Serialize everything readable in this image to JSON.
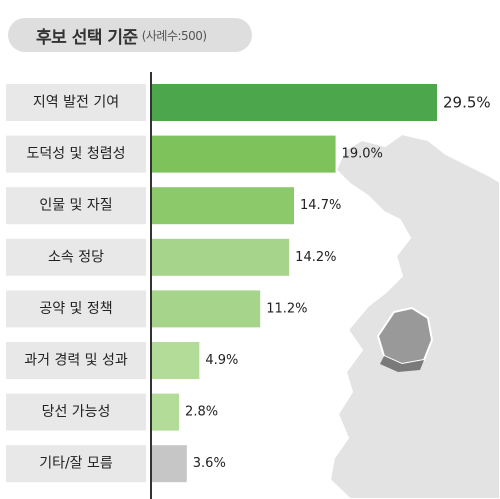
{
  "header": {
    "title": "후보 선택 기준",
    "subtitle": "(사례수:500)"
  },
  "chart_data": {
    "type": "bar",
    "orientation": "horizontal",
    "title": "후보 선택 기준",
    "subtitle": "(사례수:500)",
    "categories": [
      "지역 발전 기여",
      "도덕성 및 청렴성",
      "인물 및 자질",
      "소속 정당",
      "공약 및 정책",
      "과거 경력 및 성과",
      "당선 가능성",
      "기타/잘 모름"
    ],
    "values": [
      29.5,
      19.0,
      14.7,
      14.2,
      11.2,
      4.9,
      2.8,
      3.6
    ],
    "value_labels": [
      "29.5%",
      "19.0%",
      "14.7%",
      "14.2%",
      "11.2%",
      "4.9%",
      "2.8%",
      "3.6%"
    ],
    "unit": "%",
    "xlim": [
      0,
      30
    ],
    "grid": false,
    "legend": "none",
    "colors": {
      "highlight": "#4ca64c",
      "bars": [
        "#4ca64c",
        "#7dc25a",
        "#8cc96a",
        "#a5d48a",
        "#a5d48a",
        "#b3dc98",
        "#b3dc98",
        "#c6c6c6"
      ],
      "label_box": "#e8e8e8",
      "axis": "#333333",
      "map_fill": "#e3e3e3",
      "map_highlight": "#999999"
    }
  }
}
